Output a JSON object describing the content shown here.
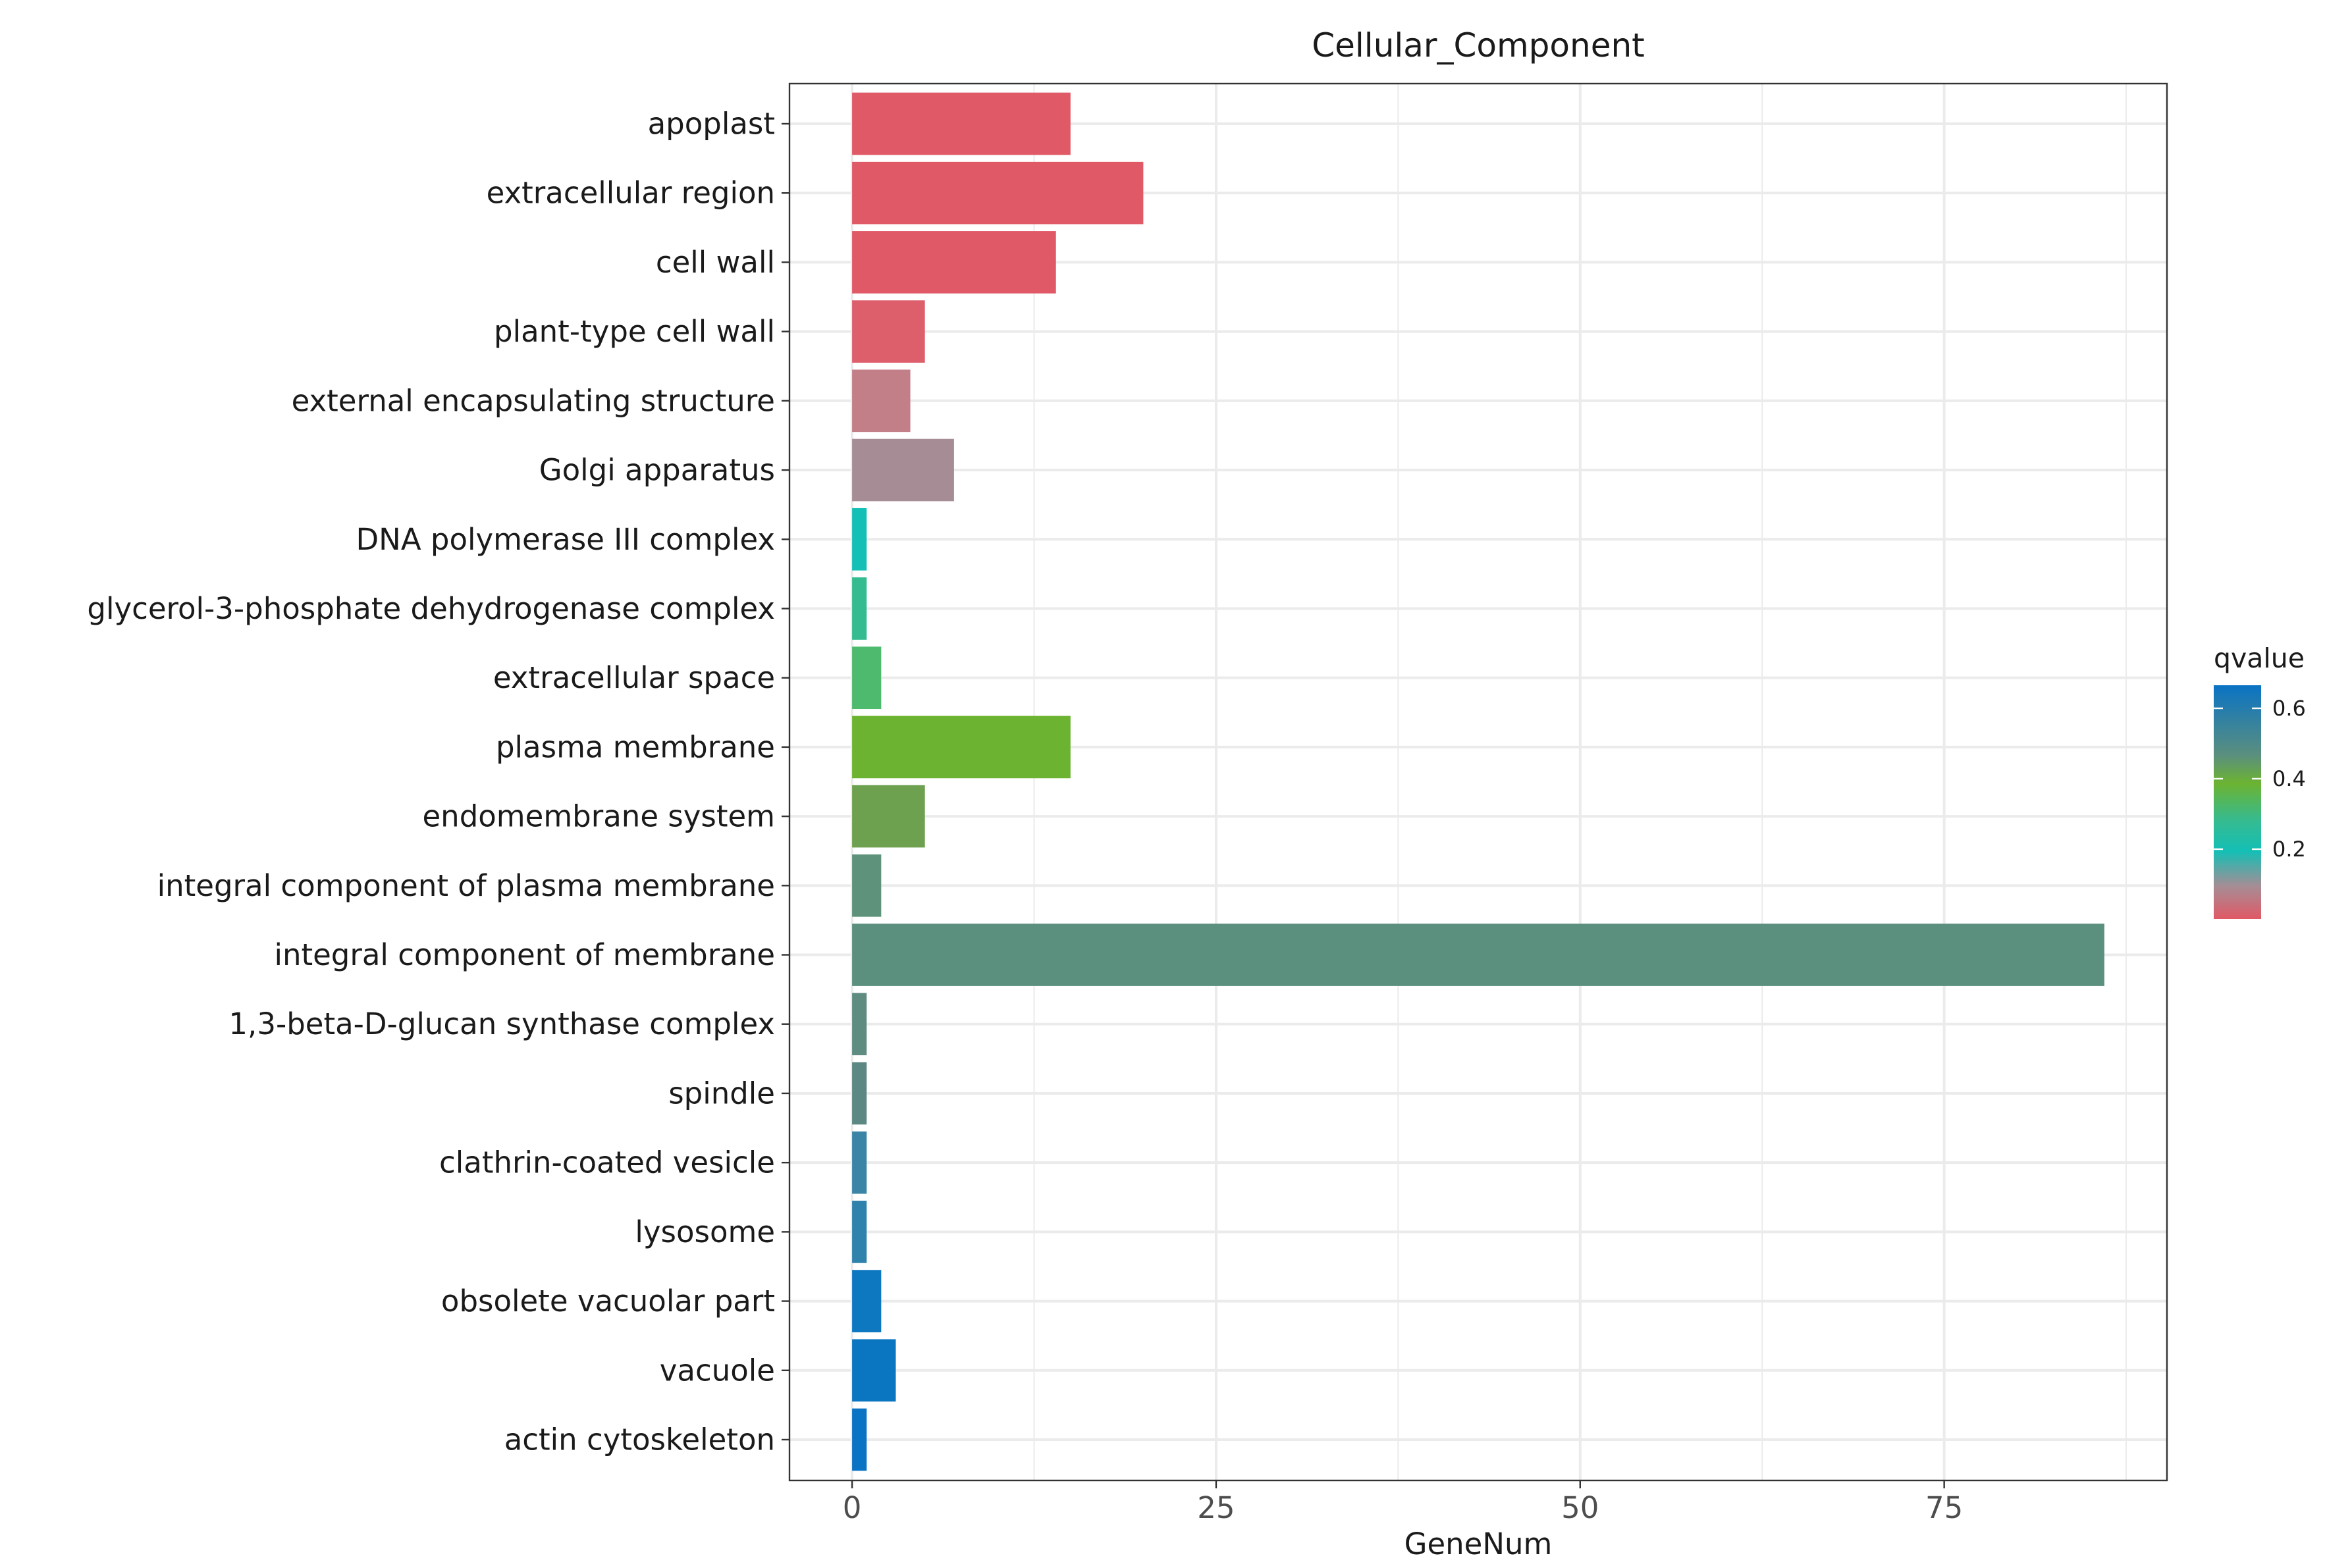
{
  "chart_data": {
    "type": "bar",
    "orientation": "horizontal",
    "title": "Cellular_Component",
    "xlabel": "GeneNum",
    "ylabel": "",
    "xlim": [
      -4.3,
      90.3
    ],
    "xticks": [
      0,
      25,
      50,
      75
    ],
    "grid": true,
    "categories": [
      "apoplast",
      "extracellular region",
      "cell wall",
      "plant-type cell wall",
      "external encapsulating structure",
      "Golgi apparatus",
      "DNA polymerase III complex",
      "glycerol-3-phosphate dehydrogenase complex",
      "extracellular space",
      "plasma membrane",
      "endomembrane system",
      "integral component of plasma membrane",
      "integral component of membrane",
      "1,3-beta-D-glucan synthase complex",
      "spindle",
      "clathrin-coated vesicle",
      "lysosome",
      "obsolete vacuolar part",
      "vacuole",
      "actin cytoskeleton"
    ],
    "values": [
      15,
      20,
      14,
      5,
      4,
      7,
      1,
      1,
      2,
      15,
      5,
      2,
      86,
      1,
      1,
      1,
      1,
      2,
      3,
      1
    ],
    "colors": [
      "#e05966",
      "#e05966",
      "#e05966",
      "#dd5f6c",
      "#c27f88",
      "#a68d95",
      "#14bfb5",
      "#35bb90",
      "#4dba6e",
      "#6cb331",
      "#6ea14f",
      "#5f927a",
      "#5b8f7e",
      "#5f8c80",
      "#5c8883",
      "#3a84a5",
      "#2f82ac",
      "#0d77c0",
      "#0a75c0",
      "#0a73c4"
    ],
    "legend": {
      "title": "qvalue",
      "ticks": [
        "0.6",
        "0.4",
        "0.2"
      ],
      "placement": "right",
      "gradient_stops": [
        "#0a73c4",
        "#5b8f7e",
        "#6cb331",
        "#35bb90",
        "#14bfb5",
        "#a68d95",
        "#e05966"
      ]
    }
  }
}
